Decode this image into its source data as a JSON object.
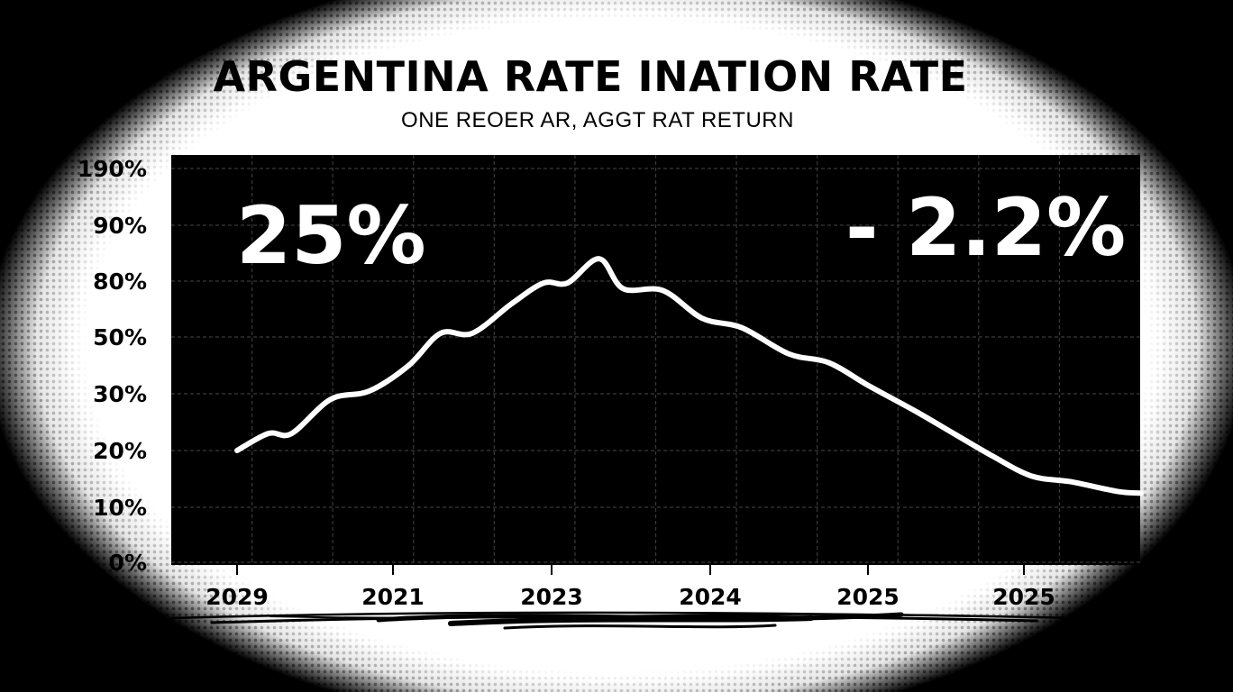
{
  "chart_data": {
    "type": "line",
    "title": "ARGENTINA RATE INATION RATE",
    "subtitle": "ONE REOER AR, AGGT RAT RETURN",
    "xlabel": "",
    "ylabel": "",
    "y_tick_labels": [
      "190%",
      "90%",
      "80%",
      "50%",
      "30%",
      "20%",
      "10%",
      "0%"
    ],
    "x_tick_labels": [
      "2029",
      "2021",
      "2023",
      "2024",
      "2025",
      "2025"
    ],
    "grid": true,
    "annotations": [
      {
        "name": "annotation-left",
        "text": "25%"
      },
      {
        "name": "annotation-right",
        "text": "- 2.2%"
      }
    ],
    "series": [
      {
        "name": "inflation",
        "points": [
          [
            0.0,
            20
          ],
          [
            0.2,
            23
          ],
          [
            0.35,
            23
          ],
          [
            0.6,
            29
          ],
          [
            0.85,
            31
          ],
          [
            1.1,
            40
          ],
          [
            1.3,
            52
          ],
          [
            1.5,
            52
          ],
          [
            1.75,
            68
          ],
          [
            1.95,
            79
          ],
          [
            2.1,
            79
          ],
          [
            2.3,
            84
          ],
          [
            2.45,
            76
          ],
          [
            2.7,
            75
          ],
          [
            2.95,
            60
          ],
          [
            3.2,
            55
          ],
          [
            3.5,
            44
          ],
          [
            3.75,
            41
          ],
          [
            4.0,
            33
          ],
          [
            4.3,
            27
          ],
          [
            4.55,
            23
          ],
          [
            4.8,
            19
          ],
          [
            5.05,
            15.5
          ],
          [
            5.3,
            14.5
          ],
          [
            5.6,
            12.8
          ],
          [
            5.75,
            12.5
          ]
        ]
      }
    ]
  }
}
